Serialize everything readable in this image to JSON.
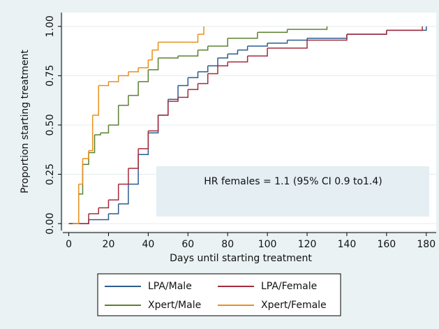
{
  "chart_data": {
    "type": "step",
    "xlabel": "Days until starting treatment",
    "ylabel": "Proportion starting treatment",
    "annotation": "HR females = 1.1 (95% CI 0.9 to1.4)",
    "xlim": [
      -3,
      185
    ],
    "xticks": [
      0,
      20,
      40,
      60,
      80,
      100,
      120,
      140,
      160,
      180
    ],
    "ylim": [
      -0.035,
      1.07
    ],
    "yticks": [
      {
        "value": 0,
        "label": "0.00"
      },
      {
        "value": 0.25,
        "label": "0.25"
      },
      {
        "value": 0.5,
        "label": "0.50"
      },
      {
        "value": 0.75,
        "label": "0.75"
      },
      {
        "value": 1,
        "label": "1.00"
      }
    ],
    "grid": true,
    "legend": "bottom",
    "series": [
      {
        "name": "LPA/Male",
        "color": "#2c5b8e",
        "x": [
          0,
          10,
          20,
          25,
          30,
          35,
          40,
          45,
          50,
          55,
          60,
          65,
          70,
          75,
          80,
          85,
          90,
          100,
          110,
          120,
          140,
          160,
          180
        ],
        "values": [
          0,
          0.02,
          0.05,
          0.1,
          0.2,
          0.35,
          0.46,
          0.55,
          0.63,
          0.7,
          0.74,
          0.77,
          0.8,
          0.84,
          0.86,
          0.88,
          0.9,
          0.915,
          0.93,
          0.94,
          0.96,
          0.98,
          1.0
        ]
      },
      {
        "name": "LPA/Female",
        "color": "#a52a3a",
        "x": [
          0,
          10,
          15,
          20,
          25,
          30,
          35,
          40,
          45,
          50,
          55,
          60,
          65,
          70,
          75,
          80,
          90,
          100,
          120,
          140,
          160,
          178
        ],
        "values": [
          0,
          0.05,
          0.08,
          0.12,
          0.2,
          0.28,
          0.38,
          0.47,
          0.55,
          0.62,
          0.64,
          0.68,
          0.71,
          0.76,
          0.8,
          0.82,
          0.85,
          0.89,
          0.93,
          0.96,
          0.98,
          1.0
        ]
      },
      {
        "name": "Xpert/Male",
        "color": "#5b8030",
        "x": [
          2,
          5,
          7,
          10,
          13,
          16,
          20,
          25,
          30,
          35,
          40,
          45,
          55,
          65,
          70,
          80,
          95,
          110,
          130
        ],
        "values": [
          0,
          0.15,
          0.3,
          0.36,
          0.45,
          0.46,
          0.5,
          0.6,
          0.65,
          0.72,
          0.78,
          0.84,
          0.85,
          0.88,
          0.9,
          0.94,
          0.97,
          0.985,
          1.0
        ]
      },
      {
        "name": "Xpert/Female",
        "color": "#e8901c",
        "x": [
          2,
          5,
          7,
          10,
          12,
          15,
          20,
          25,
          30,
          35,
          40,
          42,
          45,
          60,
          65,
          68
        ],
        "values": [
          0,
          0.2,
          0.33,
          0.37,
          0.55,
          0.7,
          0.72,
          0.75,
          0.77,
          0.79,
          0.83,
          0.88,
          0.92,
          0.92,
          0.96,
          1.0
        ]
      }
    ]
  }
}
